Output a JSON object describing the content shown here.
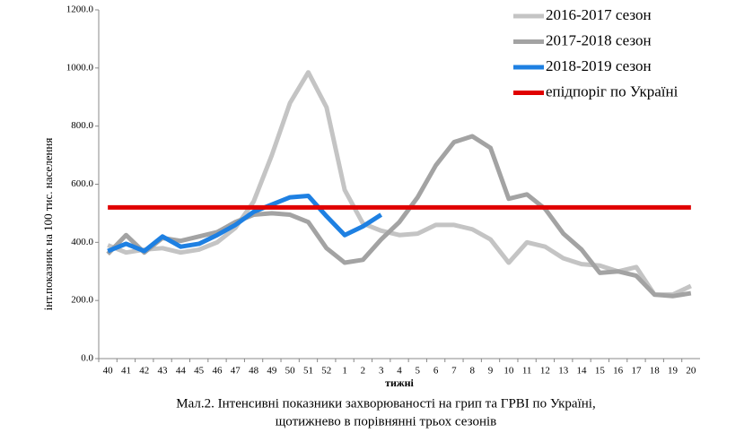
{
  "chart_data": {
    "type": "line",
    "caption": [
      "Мал.2. Інтенсивні показники захворюваності на грип та ГРВІ по Україні,",
      "щотижнево в порівнянні трьох сезонів"
    ],
    "x_label": "тижні",
    "y_label": "інт.показник на 100 тис. населення",
    "categories": [
      "40",
      "41",
      "42",
      "43",
      "44",
      "45",
      "46",
      "47",
      "48",
      "49",
      "50",
      "51",
      "52",
      "1",
      "2",
      "3",
      "4",
      "5",
      "6",
      "7",
      "8",
      "9",
      "10",
      "11",
      "12",
      "13",
      "14",
      "15",
      "16",
      "17",
      "18",
      "19",
      "20"
    ],
    "series": [
      {
        "name": "2016-2017 сезон",
        "color": "#c4c4c4",
        "values": [
          390,
          365,
          375,
          380,
          365,
          375,
          400,
          450,
          540,
          700,
          880,
          985,
          865,
          580,
          465,
          440,
          425,
          430,
          460,
          460,
          445,
          410,
          330,
          400,
          385,
          345,
          325,
          320,
          300,
          315,
          220,
          220,
          250
        ]
      },
      {
        "name": "2017-2018 сезон",
        "color": "#a3a3a3",
        "values": [
          360,
          425,
          365,
          415,
          405,
          420,
          435,
          470,
          495,
          500,
          495,
          470,
          380,
          330,
          340,
          410,
          470,
          555,
          665,
          745,
          765,
          725,
          550,
          565,
          515,
          430,
          375,
          295,
          300,
          285,
          220,
          215,
          225
        ]
      },
      {
        "name": "2018-2019 сезон",
        "color": "#1e80e2",
        "values": [
          370,
          395,
          370,
          420,
          385,
          395,
          425,
          460,
          505,
          530,
          555,
          560,
          490,
          425,
          455,
          495,
          null,
          null,
          null,
          null,
          null,
          null,
          null,
          null,
          null,
          null,
          null,
          null,
          null,
          null,
          null,
          null,
          null
        ]
      },
      {
        "name": "епідпоріг по Україні",
        "color": "#e00000",
        "values": [
          520,
          520,
          520,
          520,
          520,
          520,
          520,
          520,
          520,
          520,
          520,
          520,
          520,
          520,
          520,
          520,
          520,
          520,
          520,
          520,
          520,
          520,
          520,
          520,
          520,
          520,
          520,
          520,
          520,
          520,
          520,
          520,
          520
        ]
      }
    ],
    "ylim": [
      0,
      1200
    ],
    "yticks": [
      {
        "value": 0,
        "label": "0.0"
      },
      {
        "value": 200,
        "label": "200.0"
      },
      {
        "value": 400,
        "label": "400.0"
      },
      {
        "value": 600,
        "label": "600.0"
      },
      {
        "value": 800,
        "label": "800.0"
      },
      {
        "value": 1000,
        "label": "1000.0"
      },
      {
        "value": 1200,
        "label": "1200.0"
      }
    ],
    "legend": "top-right"
  }
}
